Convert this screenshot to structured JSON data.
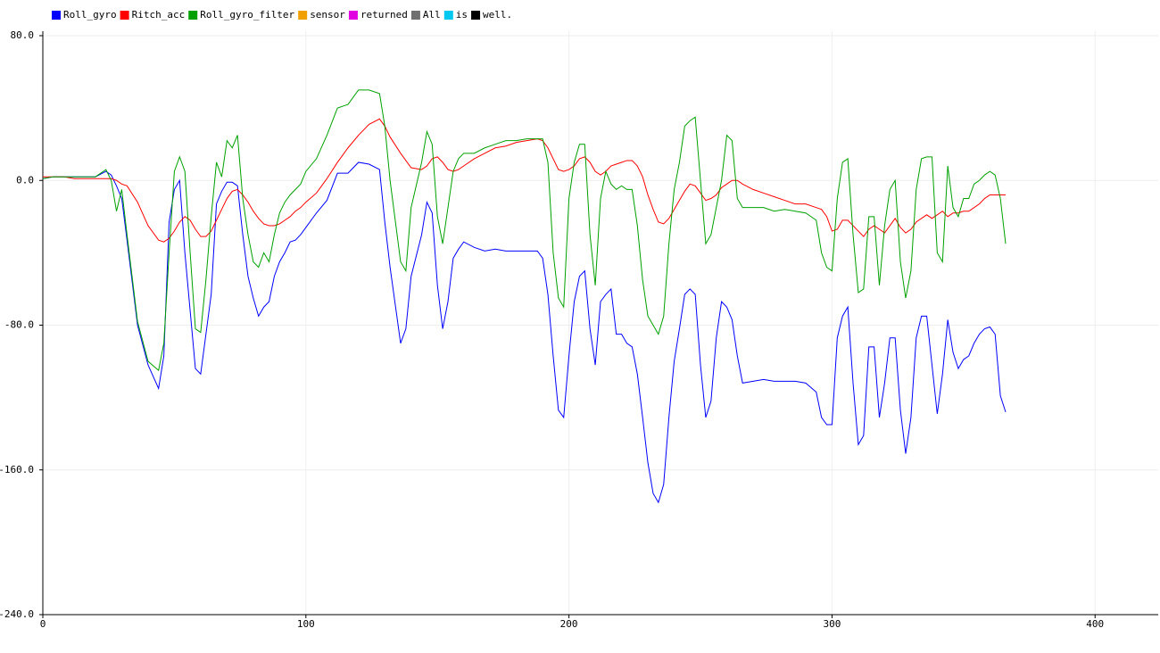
{
  "chart_data": {
    "type": "line",
    "x": [
      0,
      4,
      8,
      12,
      16,
      20,
      24,
      26,
      28,
      30,
      32,
      36,
      40,
      44,
      46,
      48,
      50,
      52,
      54,
      56,
      58,
      60,
      62,
      64,
      66,
      68,
      70,
      72,
      74,
      76,
      78,
      80,
      82,
      84,
      86,
      88,
      90,
      92,
      94,
      96,
      98,
      100,
      104,
      108,
      112,
      116,
      120,
      124,
      128,
      130,
      132,
      136,
      138,
      140,
      144,
      146,
      148,
      150,
      152,
      154,
      156,
      158,
      160,
      164,
      168,
      172,
      176,
      180,
      184,
      188,
      190,
      192,
      194,
      196,
      198,
      200,
      202,
      204,
      206,
      208,
      210,
      212,
      214,
      216,
      218,
      220,
      222,
      224,
      226,
      228,
      230,
      232,
      234,
      236,
      238,
      240,
      242,
      244,
      246,
      248,
      250,
      252,
      254,
      256,
      258,
      260,
      262,
      264,
      266,
      270,
      274,
      278,
      282,
      286,
      290,
      294,
      296,
      298,
      300,
      302,
      304,
      306,
      308,
      310,
      312,
      314,
      316,
      318,
      320,
      322,
      324,
      326,
      328,
      330,
      332,
      334,
      336,
      338,
      340,
      342,
      344,
      346,
      348,
      350,
      352,
      354,
      356,
      358,
      360,
      362,
      364,
      366
    ],
    "series": [
      {
        "name": "Roll_gyro",
        "color": "#0000ff",
        "values": [
          1,
          2,
          2,
          2,
          2,
          2,
          5,
          3,
          -3,
          -10,
          -33,
          -80,
          -102,
          -115,
          -97,
          -23,
          -5,
          0,
          -40,
          -72,
          -104,
          -107,
          -85,
          -63,
          -13,
          -6,
          -1,
          -1,
          -3,
          -30,
          -53,
          -65,
          -75,
          -70,
          -67,
          -53,
          -45,
          -40,
          -34,
          -33,
          -30,
          -26,
          -18,
          -11,
          4,
          4,
          10,
          9,
          6,
          -23,
          -48,
          -90,
          -82,
          -53,
          -30,
          -12,
          -18,
          -58,
          -82,
          -67,
          -43,
          -38,
          -34,
          -37,
          -39,
          -38,
          -39,
          -39,
          -39,
          -39,
          -43,
          -63,
          -97,
          -127,
          -131,
          -97,
          -67,
          -53,
          -50,
          -82,
          -102,
          -67,
          -63,
          -60,
          -85,
          -85,
          -90,
          -92,
          -107,
          -131,
          -156,
          -173,
          -178,
          -168,
          -131,
          -100,
          -82,
          -63,
          -60,
          -63,
          -102,
          -131,
          -122,
          -87,
          -67,
          -70,
          -77,
          -97,
          -112,
          -111,
          -110,
          -111,
          -111,
          -111,
          -112,
          -117,
          -131,
          -135,
          -135,
          -87,
          -75,
          -70,
          -112,
          -146,
          -141,
          -92,
          -92,
          -131,
          -112,
          -87,
          -87,
          -127,
          -151,
          -131,
          -87,
          -75,
          -75,
          -102,
          -129,
          -107,
          -77,
          -95,
          -104,
          -99,
          -97,
          -90,
          -85,
          -82,
          -81,
          -85,
          -119,
          -128
        ]
      },
      {
        "name": "Ritch_acc",
        "color": "#ff0000",
        "values": [
          2,
          2,
          2,
          1,
          1,
          1,
          1,
          1,
          0,
          -2,
          -3,
          -12,
          -25,
          -33,
          -34,
          -32,
          -28,
          -23,
          -20,
          -22,
          -27,
          -31,
          -31,
          -28,
          -22,
          -16,
          -10,
          -6,
          -5,
          -8,
          -12,
          -17,
          -21,
          -24,
          -25,
          -25,
          -24,
          -22,
          -20,
          -17,
          -15,
          -12,
          -7,
          1,
          10,
          18,
          25,
          31,
          34,
          30,
          24,
          15,
          11,
          7,
          6,
          8,
          12,
          13,
          10,
          6,
          5,
          6,
          8,
          12,
          15,
          18,
          19,
          21,
          22,
          23,
          22,
          18,
          12,
          6,
          5,
          6,
          8,
          12,
          13,
          10,
          5,
          3,
          5,
          8,
          9,
          10,
          11,
          11,
          8,
          2,
          -8,
          -16,
          -23,
          -24,
          -21,
          -16,
          -11,
          -6,
          -2,
          -3,
          -7,
          -11,
          -10,
          -8,
          -4,
          -2,
          0,
          0,
          -2,
          -5,
          -7,
          -9,
          -11,
          -13,
          -13,
          -15,
          -16,
          -20,
          -28,
          -27,
          -22,
          -22,
          -25,
          -28,
          -31,
          -27,
          -25,
          -27,
          -29,
          -25,
          -21,
          -26,
          -29,
          -27,
          -23,
          -21,
          -19,
          -21,
          -19,
          -17,
          -20,
          -18,
          -18,
          -17,
          -17,
          -15,
          -13,
          -10,
          -8,
          -8,
          -8,
          -8
        ]
      },
      {
        "name": "Roll_gyro_filter",
        "color": "#00a000",
        "values": [
          1,
          2,
          2,
          2,
          2,
          2,
          6,
          0,
          -17,
          -5,
          -30,
          -78,
          -100,
          -105,
          -90,
          -40,
          5,
          13,
          5,
          -40,
          -82,
          -84,
          -55,
          -20,
          10,
          2,
          22,
          18,
          25,
          -10,
          -30,
          -45,
          -48,
          -40,
          -45,
          -30,
          -18,
          -12,
          -8,
          -5,
          -2,
          5,
          12,
          25,
          40,
          42,
          50,
          50,
          48,
          30,
          0,
          -45,
          -50,
          -15,
          10,
          27,
          20,
          -20,
          -35,
          -15,
          5,
          12,
          15,
          15,
          18,
          20,
          22,
          22,
          23,
          23,
          23,
          10,
          -40,
          -65,
          -70,
          -10,
          10,
          20,
          20,
          -30,
          -58,
          -10,
          5,
          -2,
          -5,
          -3,
          -5,
          -5,
          -25,
          -55,
          -75,
          -80,
          -85,
          -75,
          -35,
          -5,
          10,
          30,
          33,
          35,
          0,
          -35,
          -30,
          -15,
          0,
          25,
          22,
          -10,
          -15,
          -15,
          -15,
          -17,
          -16,
          -17,
          -18,
          -22,
          -40,
          -48,
          -50,
          -10,
          10,
          12,
          -30,
          -62,
          -60,
          -20,
          -20,
          -58,
          -25,
          -5,
          0,
          -45,
          -65,
          -50,
          -5,
          12,
          13,
          13,
          -40,
          -45,
          8,
          -15,
          -20,
          -10,
          -10,
          -2,
          0,
          3,
          5,
          3,
          -10,
          -35
        ]
      },
      {
        "name": "sensor",
        "color": "#f0a000"
      },
      {
        "name": "returned",
        "color": "#e000e0"
      },
      {
        "name": "All",
        "color": "#707070"
      },
      {
        "name": "is",
        "color": "#00c8f0"
      },
      {
        "name": "well.",
        "color": "#000000"
      }
    ],
    "xlim": [
      0,
      424
    ],
    "xticks": [
      0,
      100,
      200,
      300,
      400
    ],
    "ylim": [
      -240,
      80
    ],
    "yticks": [
      {
        "value": -240,
        "label": "-240.0"
      },
      {
        "value": -160,
        "label": "-160.0"
      },
      {
        "value": -80,
        "label": "-80.0"
      },
      {
        "value": 0,
        "label": "0.0"
      },
      {
        "value": 80,
        "label": "80.0"
      }
    ],
    "grid": true
  }
}
